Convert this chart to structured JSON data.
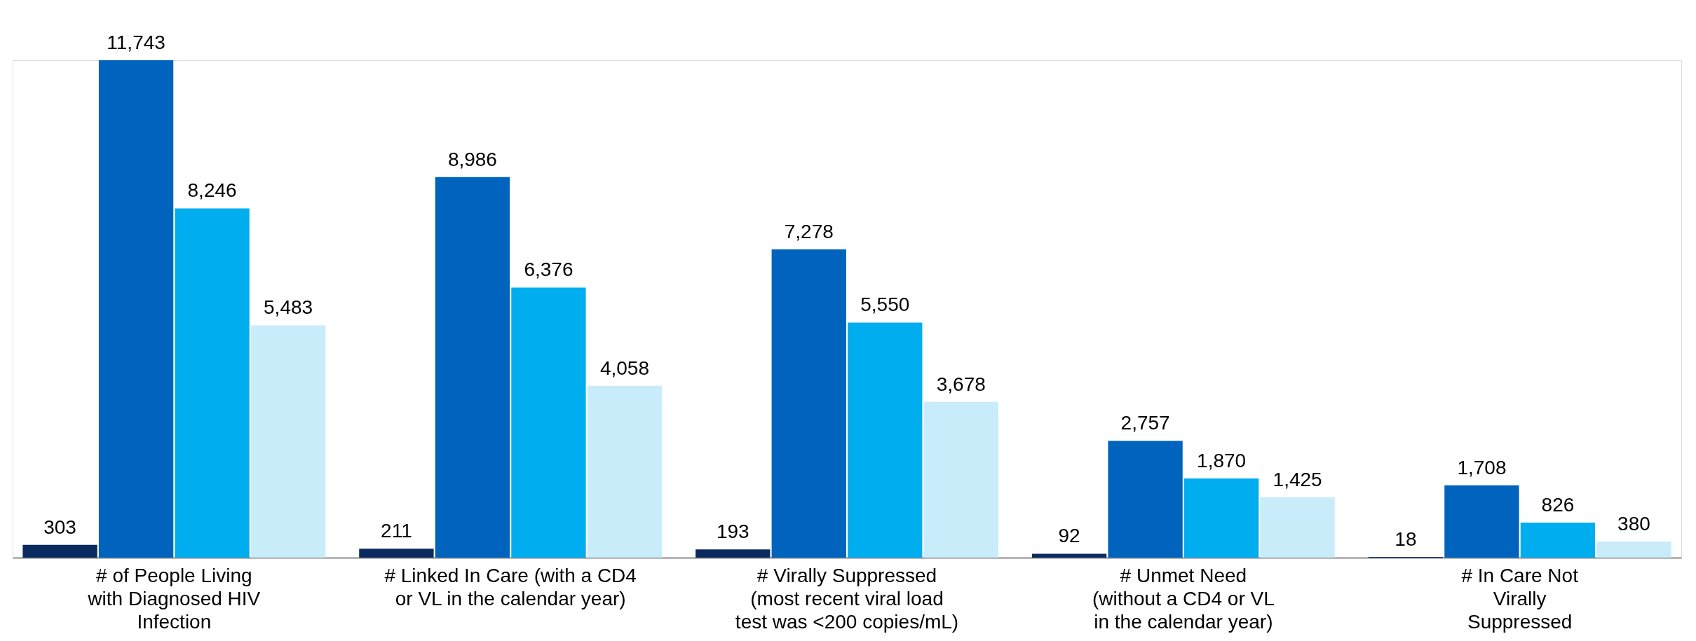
{
  "chart_data": {
    "type": "bar",
    "categories": [
      "# of People Living\nwith Diagnosed HIV\nInfection",
      "# Linked In Care (with a CD4\nor VL in the calendar year)",
      "# Virally Suppressed\n(most recent viral load\ntest was <200 copies/mL)",
      "# Unmet Need\n(without a CD4 or VL\nin the calendar year)",
      "# In Care Not\nVirally\nSuppressed"
    ],
    "series": [
      {
        "color": "#0b2a5f",
        "values": [
          303,
          211,
          193,
          92,
          18
        ],
        "value_labels": [
          "303",
          "211",
          "193",
          "92",
          "18"
        ]
      },
      {
        "color": "#0063be",
        "values": [
          11743,
          8986,
          7278,
          2757,
          1708
        ],
        "value_labels": [
          "11,743",
          "8,986",
          "7,278",
          "2,757",
          "1,708"
        ]
      },
      {
        "color": "#00adef",
        "values": [
          8246,
          6376,
          5550,
          1870,
          826
        ],
        "value_labels": [
          "8,246",
          "6,376",
          "5,550",
          "1,870",
          "826"
        ]
      },
      {
        "color": "#c9ecfb",
        "values": [
          5483,
          4058,
          3678,
          1425,
          380
        ],
        "value_labels": [
          "5,483",
          "4,058",
          "3,678",
          "1,425",
          "380"
        ]
      }
    ],
    "grid": false,
    "legend": false
  }
}
